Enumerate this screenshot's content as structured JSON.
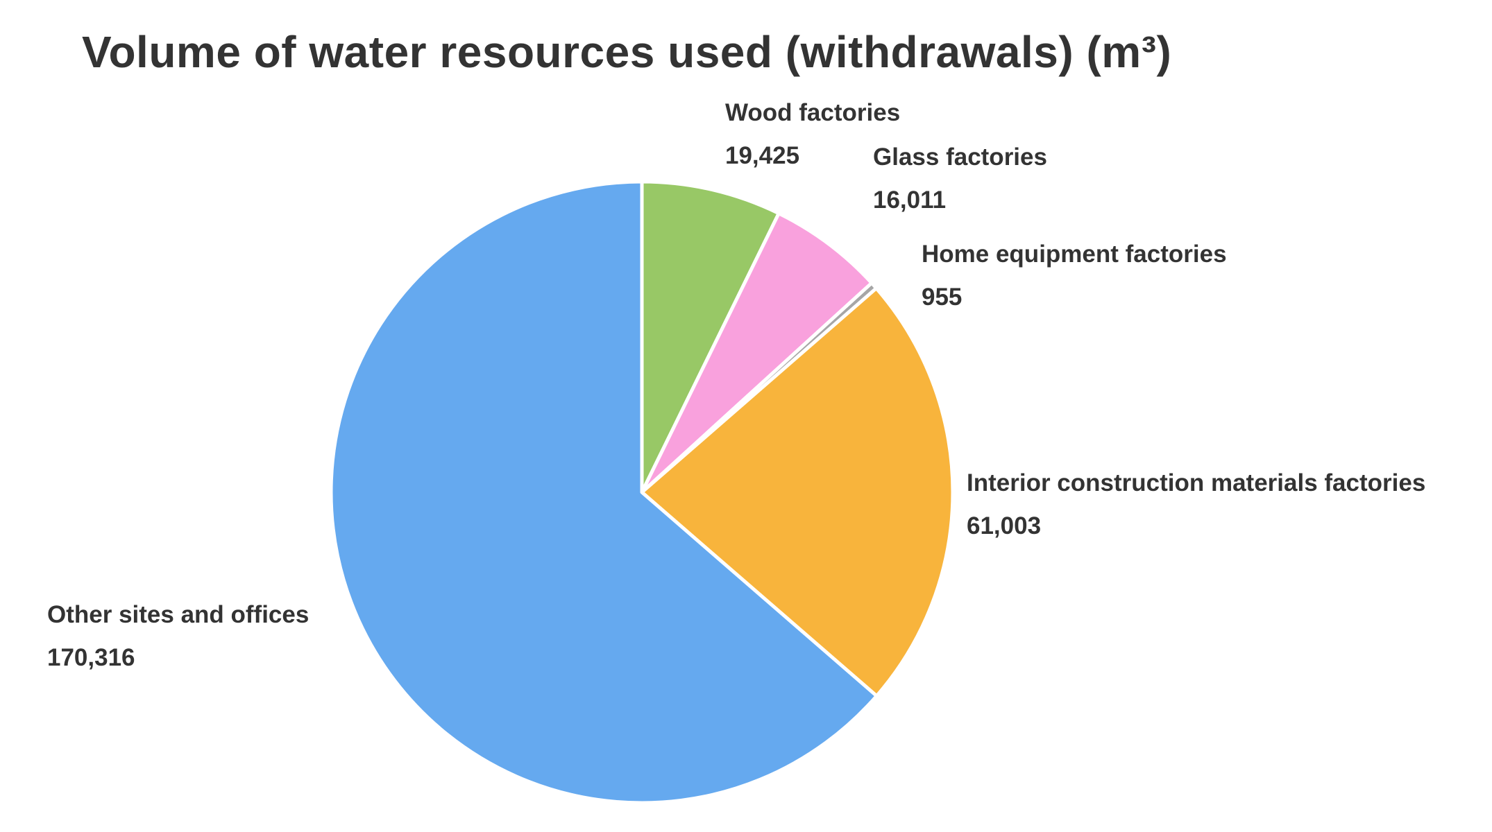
{
  "chart_data": {
    "type": "pie",
    "title": "Volume of water resources used (withdrawals) (m³)",
    "start": "12 o'clock",
    "direction": "clockwise",
    "slices": [
      {
        "label": "Wood factories",
        "value": 19425,
        "value_label": "19,425",
        "color": "#98C866"
      },
      {
        "label": "Glass factories",
        "value": 16011,
        "value_label": "16,011",
        "color": "#F9A1DD"
      },
      {
        "label": "Home equipment factories",
        "value": 955,
        "value_label": "955",
        "color": "#A6A6A6"
      },
      {
        "label": "Interior construction materials factories",
        "value": 61003,
        "value_label": "61,003",
        "color": "#F8B43C"
      },
      {
        "label": "Other sites and offices",
        "value": 170316,
        "value_label": "170,316",
        "color": "#65A9EF"
      }
    ],
    "slice_border_color": "#FFFFFF",
    "text_color": "#333333",
    "legend": "none"
  }
}
